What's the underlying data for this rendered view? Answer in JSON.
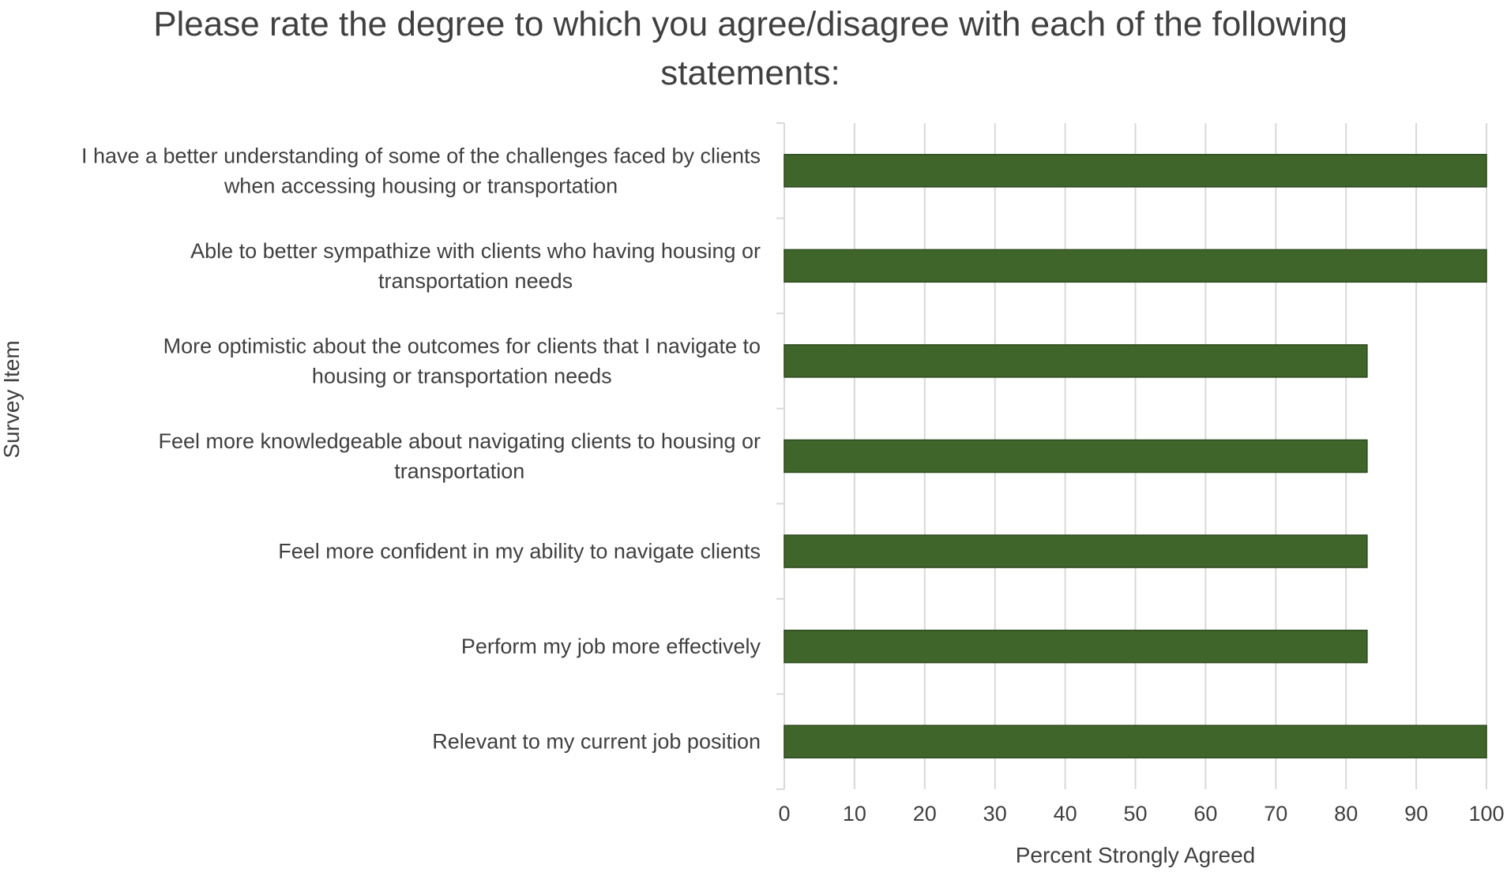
{
  "chart_data": {
    "type": "bar",
    "orientation": "horizontal",
    "title": "Please rate the degree to which you agree/disagree with each of the following statements:",
    "xlabel": "Percent Strongly Agreed",
    "ylabel": "Survey Item",
    "xlim": [
      0,
      100
    ],
    "xticks": [
      "0",
      "10",
      "20",
      "30",
      "40",
      "50",
      "60",
      "70",
      "80",
      "90",
      "100"
    ],
    "grid": true,
    "legend": "none",
    "bar_color": "#40652B",
    "bar_edge_color": "#2D4A1E",
    "categories": [
      [
        "I have a better understanding of some of the challenges faced by clients",
        "when accessing housing or transportation"
      ],
      [
        "Able to better sympathize with clients who having housing or",
        "transportation needs"
      ],
      [
        "More optimistic about the outcomes for clients that I navigate to",
        "housing or transportation needs"
      ],
      [
        "Feel more knowledgeable about navigating clients to housing or",
        "transportation"
      ],
      [
        "Feel more confident in my ability to navigate clients"
      ],
      [
        "Perform my job more effectively"
      ],
      [
        "Relevant to my current job position"
      ]
    ],
    "values": [
      100,
      100,
      83,
      83,
      83,
      83,
      100
    ]
  }
}
